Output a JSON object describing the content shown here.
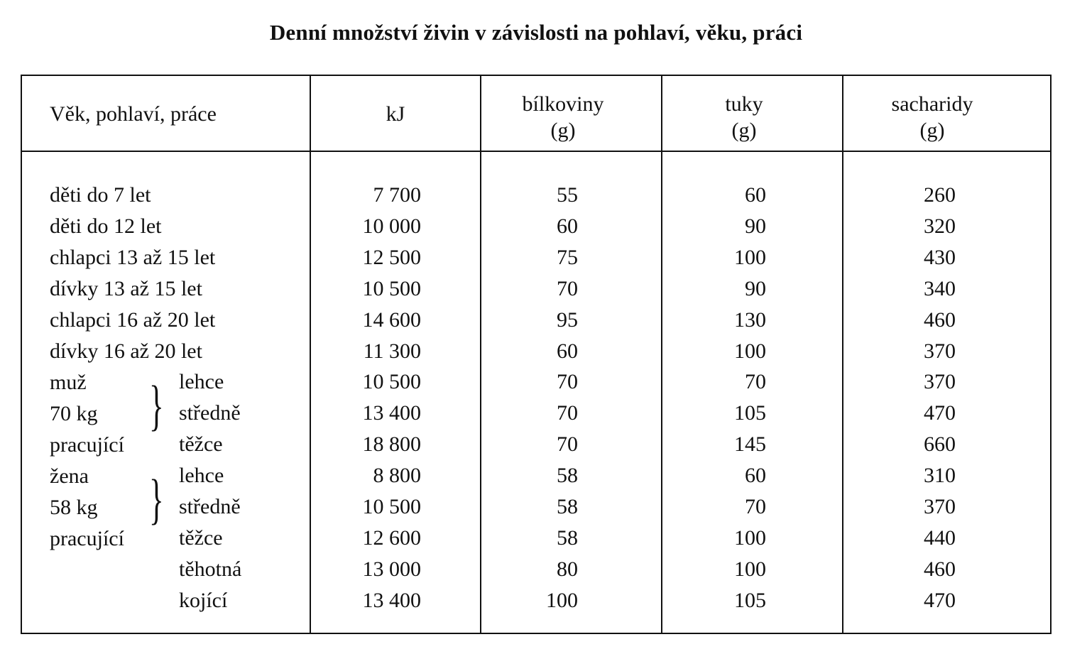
{
  "title": "Denní množství živin v závislosti na pohlaví, věku, práci",
  "headers": {
    "group": "Věk, pohlaví, práce",
    "kj": "kJ",
    "protein_line1": "bílkoviny",
    "protein_line2": "(g)",
    "fat_line1": "tuky",
    "fat_line2": "(g)",
    "carbs_line1": "sacharidy",
    "carbs_line2": "(g)"
  },
  "brace_groups": {
    "man": [
      "muž",
      "70 kg",
      "pracující"
    ],
    "woman": [
      "žena",
      "58 kg",
      "pracující"
    ]
  },
  "rows": [
    {
      "label": "děti do 7 let",
      "kj": "7 700",
      "protein": "55",
      "fat": "60",
      "carbs": "260"
    },
    {
      "label": "děti do 12 let",
      "kj": "10 000",
      "protein": "60",
      "fat": "90",
      "carbs": "320"
    },
    {
      "label": "chlapci 13 až 15 let",
      "kj": "12 500",
      "protein": "75",
      "fat": "100",
      "carbs": "430"
    },
    {
      "label": "dívky 13 až 15 let",
      "kj": "10 500",
      "protein": "70",
      "fat": "90",
      "carbs": "340"
    },
    {
      "label": "chlapci 16 až 20 let",
      "kj": "14 600",
      "protein": "95",
      "fat": "130",
      "carbs": "460"
    },
    {
      "label": "dívky 16 až 20 let",
      "kj": "11 300",
      "protein": "60",
      "fat": "100",
      "carbs": "370"
    },
    {
      "label": "lehce",
      "kj": "10 500",
      "protein": "70",
      "fat": "70",
      "carbs": "370"
    },
    {
      "label": "středně",
      "kj": "13 400",
      "protein": "70",
      "fat": "105",
      "carbs": "470"
    },
    {
      "label": "těžce",
      "kj": "18 800",
      "protein": "70",
      "fat": "145",
      "carbs": "660"
    },
    {
      "label": "lehce",
      "kj": "8 800",
      "protein": "58",
      "fat": "60",
      "carbs": "310"
    },
    {
      "label": "středně",
      "kj": "10 500",
      "protein": "58",
      "fat": "70",
      "carbs": "370"
    },
    {
      "label": "těžce",
      "kj": "12 600",
      "protein": "58",
      "fat": "100",
      "carbs": "440"
    },
    {
      "label": "těhotná",
      "kj": "13 000",
      "protein": "80",
      "fat": "100",
      "carbs": "460"
    },
    {
      "label": "kojící",
      "kj": "13 400",
      "protein": "100",
      "fat": "105",
      "carbs": "470"
    }
  ]
}
